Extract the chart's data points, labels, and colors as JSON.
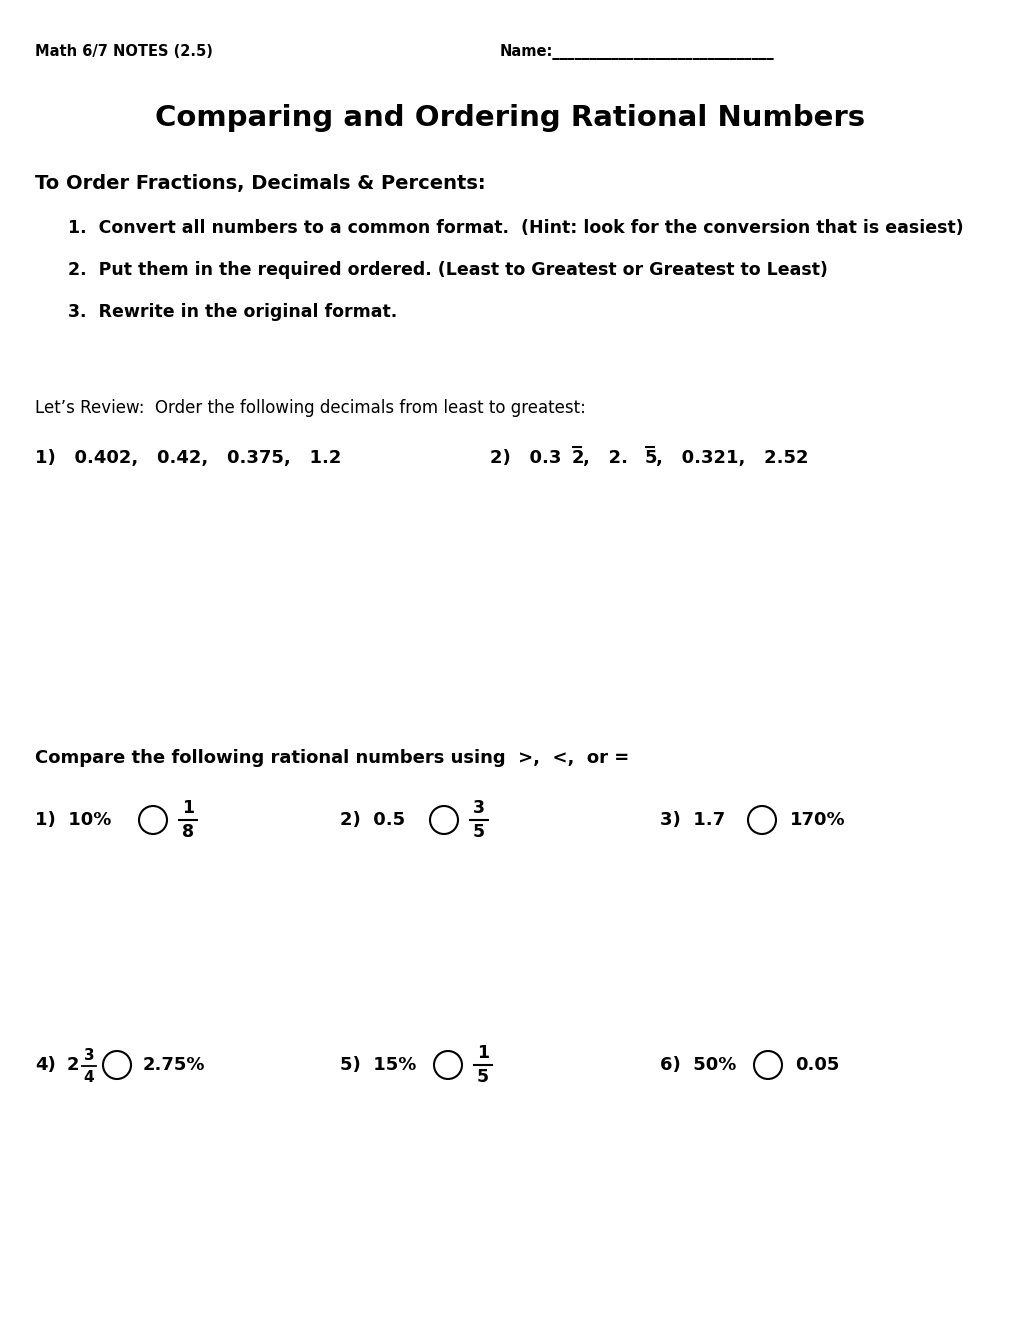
{
  "title": "Comparing and Ordering Rational Numbers",
  "header_left": "Math 6/7 NOTES (2.5)",
  "header_right": "Name:______________________________",
  "bg_color": "#ffffff",
  "section1_title": "To Order Fractions, Decimals & Percents:",
  "steps": [
    "1.  Convert all numbers to a common format.  (Hint: look for the conversion that is easiest)",
    "2.  Put them in the required ordered. (Least to Greatest or Greatest to Least)",
    "3.  Rewrite in the original format."
  ],
  "review_intro": "Let’s Review:  Order the following decimals from least to greatest:",
  "section2_title": "Compare the following rational numbers using  >,  <,  or ="
}
